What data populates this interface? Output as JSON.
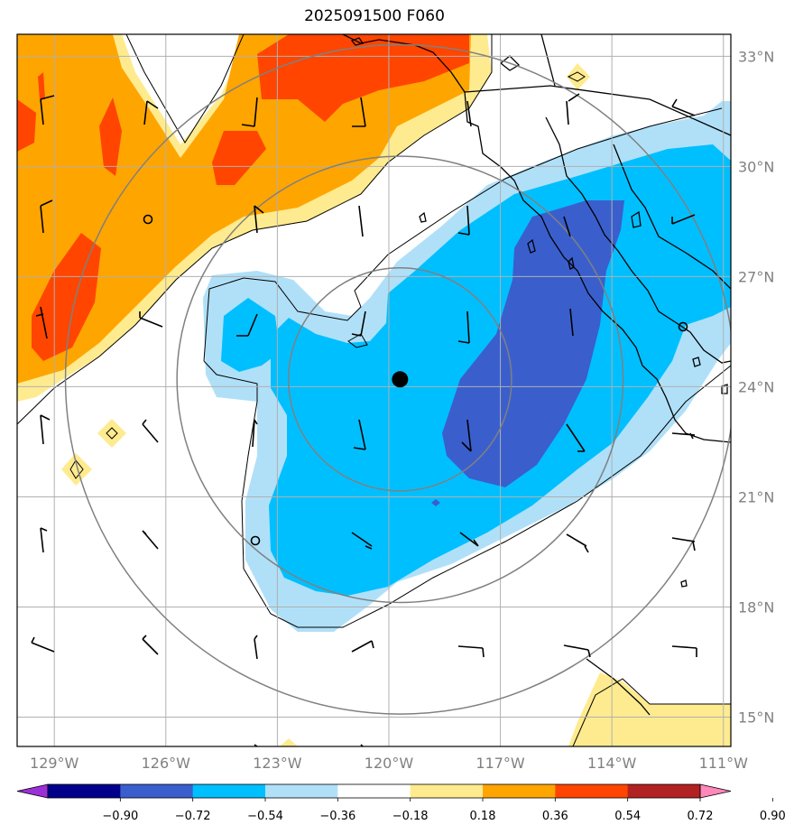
{
  "title": "2025091500 F060",
  "map": {
    "lon_range": [
      -130,
      -110.8
    ],
    "lat_range": [
      14.2,
      33.6
    ],
    "lat_ticks": [
      {
        "value": 33,
        "label": "33°N"
      },
      {
        "value": 30,
        "label": "30°N"
      },
      {
        "value": 27,
        "label": "27°N"
      },
      {
        "value": 24,
        "label": "24°N"
      },
      {
        "value": 21,
        "label": "21°N"
      },
      {
        "value": 18,
        "label": "18°N"
      },
      {
        "value": 15,
        "label": "15°N"
      }
    ],
    "lon_ticks": [
      {
        "value": -129,
        "label": "129°W"
      },
      {
        "value": -126,
        "label": "126°W"
      },
      {
        "value": -123,
        "label": "123°W"
      },
      {
        "value": -120,
        "label": "120°W"
      },
      {
        "value": -117,
        "label": "117°W"
      },
      {
        "value": -114,
        "label": "114°W"
      },
      {
        "value": -111,
        "label": "111°W"
      }
    ],
    "storm_center": {
      "lon": -119.7,
      "lat": 24.2
    },
    "range_ring_radii_deg": [
      3,
      6,
      9
    ]
  },
  "colorbar": {
    "levels": [
      "−0.90",
      "−0.72",
      "−0.54",
      "−0.36",
      "−0.18",
      "0.18",
      "0.36",
      "0.54",
      "0.72",
      "0.90"
    ],
    "colors": [
      "#9b30d9",
      "#00008b",
      "#3a5fcd",
      "#00bfff",
      "#b0e0f8",
      "#ffffff",
      "#ffeb8f",
      "#ffa500",
      "#ff4500",
      "#b22222",
      "#ff88bb"
    ]
  }
}
